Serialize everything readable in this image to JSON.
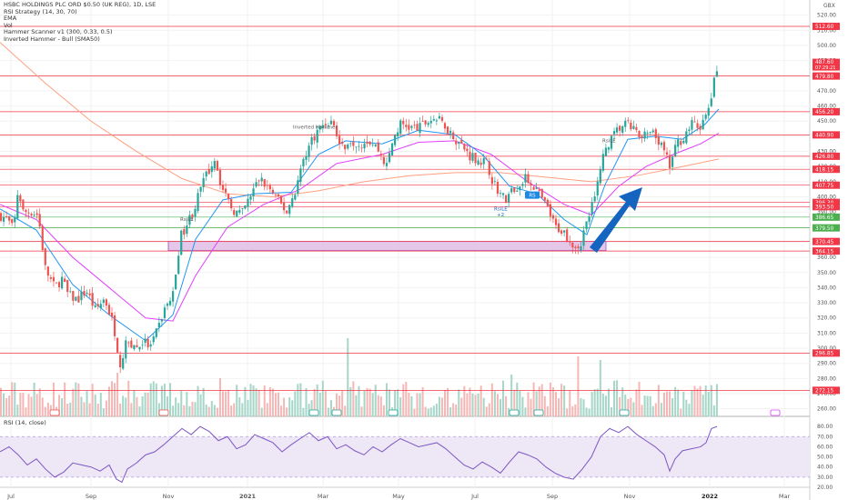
{
  "legend": {
    "title": "HSBC HOLDINGS PLC ORD $0.50 (UK REG), 1D, LSE",
    "indicators": [
      "RSI Strategy (14, 30, 70)",
      "EMA",
      "Vol",
      "Hammer Scanner v1 (300, 0.33, 0.5)",
      "Inverted Hammer - Bull (SMA50)"
    ]
  },
  "rsi_legend": "RSI (14, close)",
  "currency": "GBX",
  "annotations": {
    "inverted_hammer": "Inverted Hammer",
    "rsi_le_1": "RsiLE",
    "rsi_le_2": "RsiLE",
    "rsi_le_3": "RsiLE",
    "sell_tag": "RS",
    "rsi_le_count": "+2"
  },
  "colors": {
    "up": "#26a69a",
    "down": "#ef5350",
    "ema_fast": "#2196f3",
    "ema_mid": "#e040fb",
    "ema_slow": "#ff9f80",
    "hline_red": "#f23645",
    "hline_green": "#4caf50",
    "zone": "#e1bee7",
    "zone_border": "#9c27b0",
    "arrow": "#1565c0",
    "rsi": "#7e57c2",
    "rsi_band": "#ede7f6"
  },
  "chart_data": {
    "type": "candlestick",
    "title": "HSBC HOLDINGS PLC ORD $0.50 (UK REG), 1D, LSE",
    "x_ticks": [
      "Jul",
      "Sep",
      "Nov",
      "2021",
      "Mar",
      "May",
      "Jul",
      "Sep",
      "Nov",
      "2022",
      "Mar"
    ],
    "ylim": [
      255,
      530
    ],
    "y_ticks": [
      260,
      270,
      280,
      290,
      300,
      310,
      320,
      330,
      340,
      350,
      360,
      370,
      380,
      390,
      400,
      410,
      420,
      430,
      440,
      450,
      460,
      470,
      480,
      490,
      500,
      510,
      520
    ],
    "price_path": [
      [
        0,
        388
      ],
      [
        8,
        385
      ],
      [
        15,
        378
      ],
      [
        20,
        406
      ],
      [
        25,
        390
      ],
      [
        35,
        390
      ],
      [
        42,
        388
      ],
      [
        50,
        352
      ],
      [
        60,
        340
      ],
      [
        68,
        346
      ],
      [
        75,
        335
      ],
      [
        85,
        332
      ],
      [
        95,
        338
      ],
      [
        105,
        325
      ],
      [
        115,
        333
      ],
      [
        125,
        315
      ],
      [
        132,
        290
      ],
      [
        140,
        305
      ],
      [
        150,
        300
      ],
      [
        158,
        305
      ],
      [
        165,
        300
      ],
      [
        172,
        310
      ],
      [
        180,
        325
      ],
      [
        190,
        335
      ],
      [
        198,
        373
      ],
      [
        206,
        383
      ],
      [
        214,
        393
      ],
      [
        222,
        408
      ],
      [
        230,
        418
      ],
      [
        236,
        426
      ],
      [
        245,
        403
      ],
      [
        255,
        392
      ],
      [
        265,
        388
      ],
      [
        275,
        400
      ],
      [
        285,
        412
      ],
      [
        295,
        406
      ],
      [
        305,
        398
      ],
      [
        315,
        390
      ],
      [
        325,
        405
      ],
      [
        335,
        428
      ],
      [
        345,
        440
      ],
      [
        355,
        448
      ],
      [
        365,
        450
      ],
      [
        375,
        432
      ],
      [
        385,
        438
      ],
      [
        395,
        435
      ],
      [
        405,
        438
      ],
      [
        415,
        432
      ],
      [
        425,
        420
      ],
      [
        432,
        438
      ],
      [
        440,
        448
      ],
      [
        450,
        446
      ],
      [
        460,
        445
      ],
      [
        470,
        450
      ],
      [
        478,
        452
      ],
      [
        488,
        448
      ],
      [
        498,
        440
      ],
      [
        506,
        435
      ],
      [
        515,
        428
      ],
      [
        525,
        425
      ],
      [
        535,
        422
      ],
      [
        542,
        410
      ],
      [
        550,
        402
      ],
      [
        556,
        398
      ],
      [
        563,
        404
      ],
      [
        570,
        408
      ],
      [
        578,
        412
      ],
      [
        586,
        408
      ],
      [
        594,
        400
      ],
      [
        602,
        392
      ],
      [
        610,
        380
      ],
      [
        618,
        378
      ],
      [
        626,
        372
      ],
      [
        632,
        368
      ],
      [
        638,
        368
      ],
      [
        645,
        382
      ],
      [
        652,
        396
      ],
      [
        658,
        410
      ],
      [
        665,
        432
      ],
      [
        672,
        438
      ],
      [
        680,
        445
      ],
      [
        688,
        448
      ],
      [
        696,
        445
      ],
      [
        704,
        438
      ],
      [
        712,
        442
      ],
      [
        720,
        440
      ],
      [
        728,
        432
      ],
      [
        736,
        420
      ],
      [
        744,
        435
      ],
      [
        752,
        440
      ],
      [
        760,
        448
      ],
      [
        768,
        446
      ],
      [
        776,
        452
      ],
      [
        781,
        464
      ],
      [
        785,
        476
      ],
      [
        789,
        487
      ]
    ],
    "ema_fast_path": [
      [
        0,
        392
      ],
      [
        40,
        378
      ],
      [
        80,
        342
      ],
      [
        120,
        322
      ],
      [
        160,
        305
      ],
      [
        190,
        322
      ],
      [
        215,
        372
      ],
      [
        245,
        398
      ],
      [
        280,
        402
      ],
      [
        320,
        403
      ],
      [
        350,
        428
      ],
      [
        380,
        437
      ],
      [
        420,
        435
      ],
      [
        460,
        444
      ],
      [
        500,
        441
      ],
      [
        530,
        428
      ],
      [
        560,
        407
      ],
      [
        590,
        402
      ],
      [
        620,
        385
      ],
      [
        645,
        375
      ],
      [
        665,
        408
      ],
      [
        690,
        438
      ],
      [
        720,
        440
      ],
      [
        750,
        438
      ],
      [
        775,
        448
      ],
      [
        790,
        458
      ]
    ],
    "ema_mid_path": [
      [
        0,
        395
      ],
      [
        40,
        385
      ],
      [
        80,
        360
      ],
      [
        120,
        340
      ],
      [
        160,
        320
      ],
      [
        190,
        318
      ],
      [
        215,
        348
      ],
      [
        250,
        380
      ],
      [
        290,
        395
      ],
      [
        330,
        405
      ],
      [
        370,
        422
      ],
      [
        420,
        428
      ],
      [
        460,
        436
      ],
      [
        500,
        437
      ],
      [
        540,
        428
      ],
      [
        580,
        410
      ],
      [
        620,
        395
      ],
      [
        650,
        388
      ],
      [
        680,
        407
      ],
      [
        710,
        420
      ],
      [
        740,
        428
      ],
      [
        770,
        435
      ],
      [
        790,
        442
      ]
    ],
    "ema_slow_path": [
      [
        0,
        502
      ],
      [
        50,
        475
      ],
      [
        100,
        450
      ],
      [
        150,
        430
      ],
      [
        200,
        412
      ],
      [
        250,
        402
      ],
      [
        300,
        400
      ],
      [
        350,
        404
      ],
      [
        400,
        410
      ],
      [
        450,
        414
      ],
      [
        500,
        416
      ],
      [
        550,
        416
      ],
      [
        600,
        413
      ],
      [
        650,
        410
      ],
      [
        700,
        414
      ],
      [
        750,
        420
      ],
      [
        790,
        425
      ]
    ],
    "horizontal_levels": {
      "red": [
        512.6,
        479.8,
        456.2,
        440.9,
        426.8,
        418.2,
        407.7,
        396.3,
        393.5,
        370.5,
        364.2,
        296.8,
        272.2
      ],
      "green": [
        386.6,
        379.5
      ],
      "red_labels": [
        "512.60",
        "479.80",
        "456.20",
        "440.90",
        "426.80",
        "418.15",
        "407.75",
        "396.30",
        "393.50",
        "370.45",
        "364.15",
        "296.85",
        "272.15"
      ],
      "green_labels": [
        "386.65",
        "379.50"
      ]
    },
    "last_price": {
      "value": 487.6,
      "label": "487.60",
      "countdown": "07:29:21"
    },
    "demand_zone": {
      "low": 364.5,
      "high": 370.5,
      "x_start": 185,
      "x_end": 666
    },
    "volume": {
      "spikes": [
        [
          382,
          86
        ],
        [
          633,
          66
        ],
        [
          658,
          62
        ],
        [
          127,
          48
        ],
        [
          240,
          42
        ],
        [
          560,
          46
        ],
        [
          700,
          38
        ]
      ]
    },
    "rsi": {
      "ylim": [
        20,
        90
      ],
      "y_ticks": [
        20,
        30,
        40,
        50,
        60,
        70,
        80
      ],
      "bands": [
        30,
        70
      ],
      "path": [
        [
          0,
          55
        ],
        [
          10,
          60
        ],
        [
          20,
          52
        ],
        [
          30,
          42
        ],
        [
          40,
          48
        ],
        [
          50,
          38
        ],
        [
          60,
          30
        ],
        [
          70,
          35
        ],
        [
          80,
          44
        ],
        [
          90,
          42
        ],
        [
          100,
          40
        ],
        [
          110,
          36
        ],
        [
          120,
          42
        ],
        [
          128,
          28
        ],
        [
          134,
          25
        ],
        [
          140,
          38
        ],
        [
          150,
          44
        ],
        [
          160,
          52
        ],
        [
          170,
          55
        ],
        [
          180,
          62
        ],
        [
          190,
          70
        ],
        [
          200,
          78
        ],
        [
          210,
          72
        ],
        [
          220,
          80
        ],
        [
          230,
          75
        ],
        [
          240,
          66
        ],
        [
          250,
          70
        ],
        [
          260,
          58
        ],
        [
          270,
          62
        ],
        [
          280,
          72
        ],
        [
          290,
          68
        ],
        [
          300,
          64
        ],
        [
          310,
          55
        ],
        [
          320,
          62
        ],
        [
          330,
          68
        ],
        [
          340,
          74
        ],
        [
          350,
          66
        ],
        [
          360,
          70
        ],
        [
          370,
          58
        ],
        [
          380,
          62
        ],
        [
          390,
          56
        ],
        [
          400,
          52
        ],
        [
          410,
          60
        ],
        [
          420,
          55
        ],
        [
          430,
          62
        ],
        [
          440,
          68
        ],
        [
          450,
          64
        ],
        [
          460,
          60
        ],
        [
          470,
          62
        ],
        [
          480,
          64
        ],
        [
          490,
          58
        ],
        [
          500,
          50
        ],
        [
          510,
          42
        ],
        [
          520,
          38
        ],
        [
          530,
          45
        ],
        [
          540,
          40
        ],
        [
          550,
          34
        ],
        [
          560,
          45
        ],
        [
          570,
          55
        ],
        [
          580,
          52
        ],
        [
          590,
          48
        ],
        [
          600,
          40
        ],
        [
          610,
          34
        ],
        [
          620,
          30
        ],
        [
          630,
          28
        ],
        [
          640,
          38
        ],
        [
          650,
          50
        ],
        [
          660,
          70
        ],
        [
          670,
          78
        ],
        [
          680,
          74
        ],
        [
          690,
          80
        ],
        [
          700,
          72
        ],
        [
          710,
          66
        ],
        [
          720,
          60
        ],
        [
          730,
          52
        ],
        [
          736,
          36
        ],
        [
          742,
          48
        ],
        [
          750,
          56
        ],
        [
          760,
          58
        ],
        [
          770,
          60
        ],
        [
          776,
          64
        ],
        [
          782,
          78
        ],
        [
          788,
          80
        ]
      ]
    }
  }
}
